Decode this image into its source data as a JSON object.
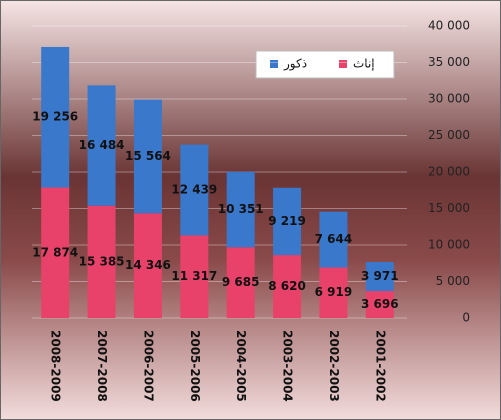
{
  "chart_data": {
    "type": "stacked_bar",
    "categories": [
      "2008-2009",
      "2007-2008",
      "2006-2007",
      "2005-2006",
      "2004-2005",
      "2003-2004",
      "2002-2003",
      "2001-2002"
    ],
    "series": [
      {
        "name": "إناث",
        "color": "#e8426a",
        "values": [
          17874,
          15385,
          14346,
          11317,
          9685,
          8620,
          6919,
          3696
        ],
        "value_labels": [
          "17 874",
          "15 385",
          "14 346",
          "11 317",
          "9 685",
          "8 620",
          "6 919",
          "3 696"
        ]
      },
      {
        "name": "ذكور",
        "color": "#3a78cc",
        "values": [
          19256,
          16484,
          15564,
          12439,
          10351,
          9219,
          7644,
          3971
        ],
        "value_labels": [
          "19 256",
          "16 484",
          "15 564",
          "12 439",
          "10 351",
          "9 219",
          "7 644",
          "3 971"
        ]
      }
    ],
    "ylim": [
      0,
      40000
    ],
    "yticks": [
      0,
      {
        "value": 5000,
        "label": "5 000"
      },
      {
        "value": 10000,
        "label": "10 000"
      },
      {
        "value": 15000,
        "label": "15 000"
      },
      {
        "value": 20000,
        "label": "20 000"
      },
      {
        "value": 25000,
        "label": "25 000"
      },
      {
        "value": 30000,
        "label": "30 000"
      },
      {
        "value": 35000,
        "label": "35 000"
      },
      {
        "value": 40000,
        "label": "40 000"
      }
    ],
    "grid": true,
    "legend": "top-right"
  }
}
